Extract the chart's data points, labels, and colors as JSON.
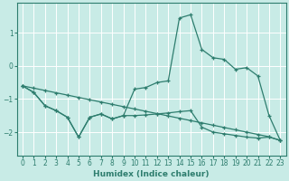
{
  "xlabel": "Humidex (Indice chaleur)",
  "bg_color": "#c8ebe6",
  "line_color": "#2e7d6e",
  "grid_color": "#ffffff",
  "xlim": [
    -0.5,
    23.5
  ],
  "ylim": [
    -2.7,
    1.9
  ],
  "yticks": [
    -2,
    -1,
    0,
    1
  ],
  "xticks": [
    0,
    1,
    2,
    3,
    4,
    5,
    6,
    7,
    8,
    9,
    10,
    11,
    12,
    13,
    14,
    15,
    16,
    17,
    18,
    19,
    20,
    21,
    22,
    23
  ],
  "line_main_x": [
    0,
    1,
    2,
    3,
    4,
    5,
    6,
    7,
    8,
    9,
    10,
    11,
    12,
    13,
    14,
    15,
    16,
    17,
    18,
    19,
    20,
    21,
    22,
    23
  ],
  "line_main_y": [
    -0.6,
    -0.8,
    -1.2,
    -1.35,
    -1.55,
    -2.15,
    -1.55,
    -1.45,
    -1.6,
    -1.5,
    -0.7,
    -0.65,
    -0.5,
    -0.45,
    1.45,
    1.55,
    0.5,
    0.25,
    0.2,
    -0.1,
    -0.05,
    -0.3,
    -1.5,
    -2.25
  ],
  "line_low_x": [
    0,
    1,
    2,
    3,
    4,
    5,
    6,
    7,
    8,
    9,
    10,
    11,
    12,
    13,
    14,
    15,
    16,
    17,
    18,
    19,
    20,
    21,
    22,
    23
  ],
  "line_low_y": [
    -0.6,
    -0.8,
    -1.2,
    -1.35,
    -1.55,
    -2.15,
    -1.55,
    -1.45,
    -1.6,
    -1.5,
    -1.5,
    -1.48,
    -1.45,
    -1.42,
    -1.38,
    -1.35,
    -1.85,
    -2.0,
    -2.05,
    -2.1,
    -2.15,
    -2.18,
    -2.15,
    -2.25
  ],
  "line_trend_x": [
    0,
    1,
    2,
    3,
    4,
    5,
    6,
    7,
    8,
    9,
    10,
    11,
    12,
    13,
    14,
    15,
    16,
    17,
    18,
    19,
    20,
    21,
    22,
    23
  ],
  "line_trend_y": [
    -0.6,
    -0.67,
    -0.74,
    -0.81,
    -0.88,
    -0.95,
    -1.02,
    -1.09,
    -1.16,
    -1.23,
    -1.3,
    -1.37,
    -1.44,
    -1.51,
    -1.58,
    -1.65,
    -1.72,
    -1.79,
    -1.86,
    -1.93,
    -2.0,
    -2.07,
    -2.14,
    -2.25
  ]
}
